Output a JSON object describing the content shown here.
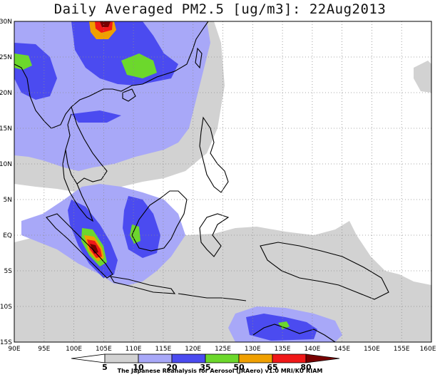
{
  "title": "Daily Averaged PM2.5 [ug/m3]: 22Aug2013",
  "map": {
    "lon_range": [
      90,
      160
    ],
    "lat_range": [
      -15,
      30
    ],
    "lon_ticks": [
      "90E",
      "95E",
      "100E",
      "105E",
      "110E",
      "115E",
      "120E",
      "125E",
      "130E",
      "135E",
      "140E",
      "145E",
      "150E",
      "155E",
      "160E"
    ],
    "lat_ticks": [
      "30N",
      "25N",
      "20N",
      "15N",
      "10N",
      "5N",
      "EQ",
      "5S",
      "10S",
      "15S"
    ],
    "grid": "dotted",
    "region": "Southeast Asia / Maritime Continent"
  },
  "legend": {
    "levels": [
      "0",
      "5",
      "10",
      "20",
      "35",
      "50",
      "65",
      "80"
    ],
    "colors": [
      "#ffffff",
      "#d2d2d2",
      "#a8a8f8",
      "#4b4bf0",
      "#6cd82c",
      "#f0a000",
      "#f01818",
      "#780000"
    ]
  },
  "credit": "The Japanese Reanalysis for Aerosol (JRAero) v1.0 MRI/KU RIAM"
}
